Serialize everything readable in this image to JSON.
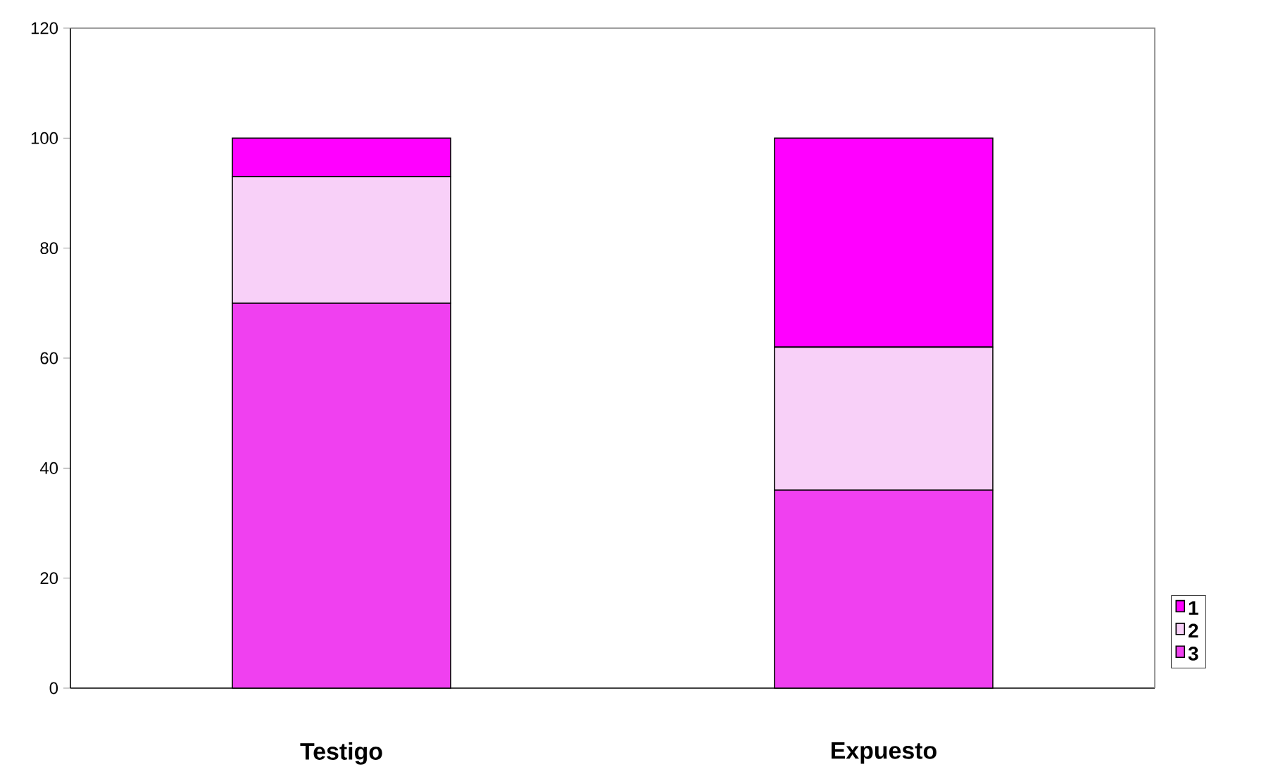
{
  "chart_data": {
    "type": "bar",
    "stacked": true,
    "categories": [
      "Testigo",
      "Expuesto"
    ],
    "series": [
      {
        "name": "3",
        "color": "#f040f0",
        "values": [
          70,
          36
        ]
      },
      {
        "name": "2",
        "color": "#f8d0f8",
        "values": [
          23,
          26
        ]
      },
      {
        "name": "1",
        "color": "#ff00ff",
        "values": [
          7,
          38
        ]
      }
    ],
    "ylim": [
      0,
      120
    ],
    "yticks": [
      0,
      20,
      40,
      60,
      80,
      100,
      120
    ],
    "legend": "right",
    "grid": false
  }
}
